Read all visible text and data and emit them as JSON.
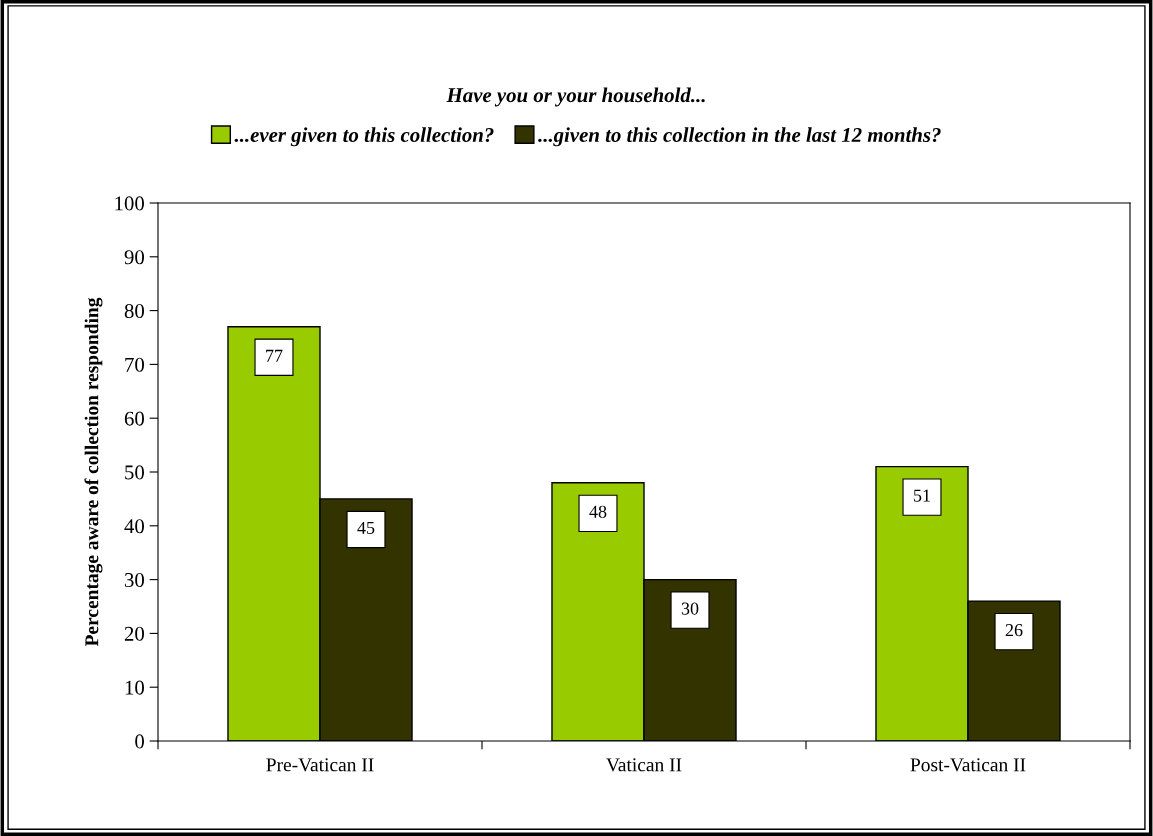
{
  "chart_data": {
    "type": "bar",
    "title": "Have you or your household...",
    "categories": [
      "Pre-Vatican II",
      "Vatican II",
      "Post-Vatican II"
    ],
    "series": [
      {
        "name": "...ever given to this collection?",
        "color": "#99cc00",
        "values": [
          77,
          48,
          51
        ]
      },
      {
        "name": "...given to this collection in the last 12 months?",
        "color": "#333300",
        "values": [
          45,
          30,
          26
        ]
      }
    ],
    "ylabel": "Percentage aware of collection responding",
    "ylim": [
      0,
      100
    ],
    "yticks": [
      0,
      10,
      20,
      30,
      40,
      50,
      60,
      70,
      80,
      90,
      100
    ],
    "data_labels": true,
    "legend": "top",
    "grid": false
  }
}
